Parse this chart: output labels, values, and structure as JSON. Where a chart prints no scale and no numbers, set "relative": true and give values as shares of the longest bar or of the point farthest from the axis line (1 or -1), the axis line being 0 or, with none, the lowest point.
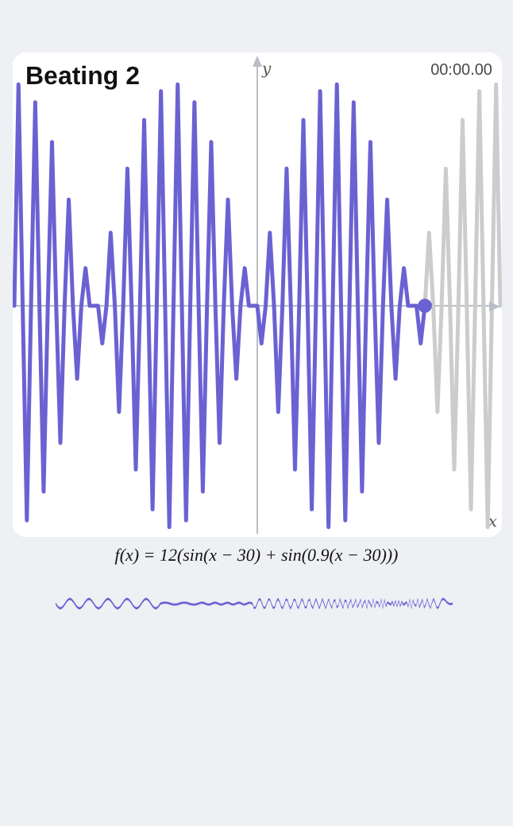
{
  "chart_data": {
    "type": "line",
    "title": "Beating 2",
    "xlabel": "x",
    "ylabel": "y",
    "relative": true,
    "marker": "none",
    "annotations": [
      "00:00.00",
      "f(x) = 12(sin(x − 30) + sin(0.9(x − 30)))"
    ],
    "categories": [
      null,
      null,
      null,
      null,
      null,
      null,
      null,
      null,
      null,
      null,
      null,
      null,
      null,
      null,
      null,
      null,
      null,
      null,
      null,
      null,
      null,
      null,
      null,
      null,
      null,
      null,
      null,
      null,
      null,
      null,
      null,
      null,
      null,
      null,
      null,
      null,
      null,
      null,
      null,
      null,
      null,
      null,
      null,
      null,
      null,
      null,
      null,
      null,
      null,
      null,
      null,
      null,
      null,
      null,
      null,
      null,
      null,
      null,
      null,
      null,
      null,
      null,
      null,
      null,
      null,
      null,
      null,
      null,
      null,
      null,
      null,
      null,
      null,
      null,
      null,
      null,
      null,
      null,
      null,
      null,
      null,
      null,
      null,
      null,
      null,
      null,
      null,
      null,
      null,
      null,
      null,
      null,
      null,
      null,
      null,
      null,
      null,
      null,
      null,
      null,
      null,
      null,
      null,
      null,
      null,
      null,
      null,
      null,
      null,
      null,
      null,
      null,
      null,
      null,
      null,
      null,
      null
    ],
    "series": [
      {
        "color": "#6a62d2",
        "values": [
          0,
          1.0,
          0,
          -0.97,
          0,
          0.92,
          0,
          -0.84,
          0,
          0.74,
          0,
          -0.62,
          0,
          0.48,
          0,
          -0.33,
          0,
          0.17,
          0,
          0,
          0,
          -0.17,
          0,
          0.33,
          0,
          -0.48,
          0,
          0.62,
          0,
          -0.74,
          0,
          0.84,
          0,
          -0.92,
          0,
          0.97,
          0,
          -1.0,
          0,
          1.0,
          0,
          -0.97,
          0,
          0.92,
          0,
          -0.84,
          0,
          0.74,
          0,
          -0.62,
          0,
          0.48,
          0,
          -0.33,
          0,
          0.17,
          0,
          0,
          0,
          -0.17,
          0,
          0.33,
          0,
          -0.48,
          0,
          0.62,
          0,
          -0.74,
          0,
          0.84,
          0,
          -0.92,
          0,
          0.97,
          0,
          -1.0,
          0,
          1.0,
          0,
          -0.97,
          0,
          0.92,
          0,
          -0.84,
          0,
          0.74,
          0,
          -0.62,
          0,
          0.48,
          0,
          -0.33,
          0,
          0.17,
          0,
          0,
          0,
          -0.17,
          0,
          null,
          null,
          null,
          null,
          null,
          null,
          null,
          null,
          null,
          null,
          null,
          null,
          null,
          null,
          null,
          null,
          null,
          null
        ]
      },
      {
        "color": "#cccccc",
        "values": [
          null,
          null,
          null,
          null,
          null,
          null,
          null,
          null,
          null,
          null,
          null,
          null,
          null,
          null,
          null,
          null,
          null,
          null,
          null,
          null,
          null,
          null,
          null,
          null,
          null,
          null,
          null,
          null,
          null,
          null,
          null,
          null,
          null,
          null,
          null,
          null,
          null,
          null,
          null,
          null,
          null,
          null,
          null,
          null,
          null,
          null,
          null,
          null,
          null,
          null,
          null,
          null,
          null,
          null,
          null,
          null,
          null,
          null,
          null,
          null,
          null,
          null,
          null,
          null,
          null,
          null,
          null,
          null,
          null,
          null,
          null,
          null,
          null,
          null,
          null,
          null,
          null,
          null,
          null,
          null,
          null,
          null,
          null,
          null,
          null,
          null,
          null,
          null,
          null,
          null,
          null,
          null,
          null,
          null,
          null,
          null,
          null,
          null,
          0,
          0.33,
          0,
          -0.48,
          0,
          0.62,
          0,
          -0.74,
          0,
          0.84,
          0,
          -0.92,
          0,
          0.97,
          0,
          -1.0,
          0,
          1.0,
          0
        ]
      }
    ]
  }
}
